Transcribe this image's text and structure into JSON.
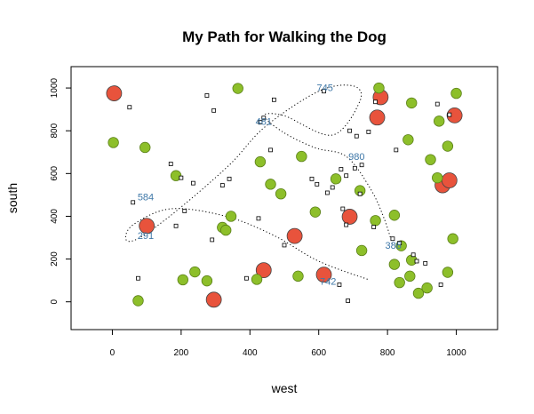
{
  "chart_data": {
    "type": "scatter",
    "title": "My Path for Walking the Dog",
    "xlabel": "west",
    "ylabel": "south",
    "xlim": [
      -120,
      1120
    ],
    "ylim": [
      -130,
      1100
    ],
    "xticks": [
      0,
      200,
      400,
      600,
      800,
      1000
    ],
    "yticks": [
      0,
      200,
      400,
      600,
      800,
      1000
    ],
    "grid": false,
    "colors": {
      "red_fill": "#e8533c",
      "green_fill": "#8dbf2a",
      "path_line": "#000000",
      "path_label": "#3f78a8"
    },
    "series": [
      {
        "marker": "large-red-circle",
        "points": [
          {
            "x": 5,
            "y": 975
          },
          {
            "x": 100,
            "y": 355
          },
          {
            "x": 295,
            "y": 10
          },
          {
            "x": 440,
            "y": 148
          },
          {
            "x": 530,
            "y": 308
          },
          {
            "x": 615,
            "y": 127
          },
          {
            "x": 690,
            "y": 398
          },
          {
            "x": 770,
            "y": 862
          },
          {
            "x": 780,
            "y": 957
          },
          {
            "x": 960,
            "y": 545
          },
          {
            "x": 980,
            "y": 568
          },
          {
            "x": 995,
            "y": 872
          }
        ]
      },
      {
        "marker": "green-circle",
        "points": [
          {
            "x": 3,
            "y": 745
          },
          {
            "x": 75,
            "y": 5
          },
          {
            "x": 95,
            "y": 722
          },
          {
            "x": 185,
            "y": 590
          },
          {
            "x": 205,
            "y": 103
          },
          {
            "x": 240,
            "y": 140
          },
          {
            "x": 275,
            "y": 98
          },
          {
            "x": 320,
            "y": 348
          },
          {
            "x": 330,
            "y": 335
          },
          {
            "x": 345,
            "y": 400
          },
          {
            "x": 365,
            "y": 998
          },
          {
            "x": 420,
            "y": 105
          },
          {
            "x": 430,
            "y": 655
          },
          {
            "x": 460,
            "y": 550
          },
          {
            "x": 490,
            "y": 505
          },
          {
            "x": 540,
            "y": 120
          },
          {
            "x": 550,
            "y": 680
          },
          {
            "x": 590,
            "y": 420
          },
          {
            "x": 650,
            "y": 575
          },
          {
            "x": 720,
            "y": 520
          },
          {
            "x": 725,
            "y": 240
          },
          {
            "x": 765,
            "y": 380
          },
          {
            "x": 775,
            "y": 1000
          },
          {
            "x": 820,
            "y": 405
          },
          {
            "x": 820,
            "y": 175
          },
          {
            "x": 835,
            "y": 90
          },
          {
            "x": 840,
            "y": 262
          },
          {
            "x": 860,
            "y": 758
          },
          {
            "x": 865,
            "y": 120
          },
          {
            "x": 870,
            "y": 195
          },
          {
            "x": 870,
            "y": 930
          },
          {
            "x": 890,
            "y": 40
          },
          {
            "x": 915,
            "y": 65
          },
          {
            "x": 925,
            "y": 665
          },
          {
            "x": 945,
            "y": 580
          },
          {
            "x": 950,
            "y": 845
          },
          {
            "x": 975,
            "y": 138
          },
          {
            "x": 975,
            "y": 728
          },
          {
            "x": 990,
            "y": 295
          },
          {
            "x": 1000,
            "y": 975
          }
        ]
      },
      {
        "marker": "small-square",
        "points": [
          {
            "x": 50,
            "y": 910
          },
          {
            "x": 60,
            "y": 465
          },
          {
            "x": 75,
            "y": 110
          },
          {
            "x": 170,
            "y": 645
          },
          {
            "x": 185,
            "y": 355
          },
          {
            "x": 200,
            "y": 580
          },
          {
            "x": 210,
            "y": 425
          },
          {
            "x": 235,
            "y": 555
          },
          {
            "x": 275,
            "y": 965
          },
          {
            "x": 290,
            "y": 290
          },
          {
            "x": 295,
            "y": 895
          },
          {
            "x": 320,
            "y": 545
          },
          {
            "x": 340,
            "y": 575
          },
          {
            "x": 390,
            "y": 110
          },
          {
            "x": 425,
            "y": 390
          },
          {
            "x": 430,
            "y": 840
          },
          {
            "x": 440,
            "y": 860
          },
          {
            "x": 460,
            "y": 710
          },
          {
            "x": 470,
            "y": 945
          },
          {
            "x": 500,
            "y": 265
          },
          {
            "x": 580,
            "y": 575
          },
          {
            "x": 595,
            "y": 550
          },
          {
            "x": 615,
            "y": 985
          },
          {
            "x": 625,
            "y": 510
          },
          {
            "x": 640,
            "y": 535
          },
          {
            "x": 660,
            "y": 80
          },
          {
            "x": 665,
            "y": 620
          },
          {
            "x": 670,
            "y": 435
          },
          {
            "x": 680,
            "y": 360
          },
          {
            "x": 680,
            "y": 590
          },
          {
            "x": 685,
            "y": 5
          },
          {
            "x": 690,
            "y": 800
          },
          {
            "x": 705,
            "y": 625
          },
          {
            "x": 710,
            "y": 775
          },
          {
            "x": 720,
            "y": 505
          },
          {
            "x": 725,
            "y": 640
          },
          {
            "x": 745,
            "y": 795
          },
          {
            "x": 760,
            "y": 350
          },
          {
            "x": 765,
            "y": 935
          },
          {
            "x": 815,
            "y": 295
          },
          {
            "x": 825,
            "y": 710
          },
          {
            "x": 835,
            "y": 275
          },
          {
            "x": 875,
            "y": 220
          },
          {
            "x": 885,
            "y": 190
          },
          {
            "x": 910,
            "y": 180
          },
          {
            "x": 945,
            "y": 925
          },
          {
            "x": 955,
            "y": 80
          },
          {
            "x": 980,
            "y": 875
          }
        ]
      }
    ],
    "path": {
      "points": [
        {
          "x": 742,
          "y": 105
        },
        {
          "x": 600,
          "y": 190
        },
        {
          "x": 470,
          "y": 310
        },
        {
          "x": 330,
          "y": 400
        },
        {
          "x": 170,
          "y": 435
        },
        {
          "x": 60,
          "y": 360
        },
        {
          "x": 40,
          "y": 290
        },
        {
          "x": 80,
          "y": 300
        },
        {
          "x": 190,
          "y": 430
        },
        {
          "x": 340,
          "y": 640
        },
        {
          "x": 445,
          "y": 820
        },
        {
          "x": 600,
          "y": 985
        },
        {
          "x": 700,
          "y": 1010
        },
        {
          "x": 720,
          "y": 940
        },
        {
          "x": 640,
          "y": 780
        },
        {
          "x": 500,
          "y": 870
        },
        {
          "x": 440,
          "y": 870
        },
        {
          "x": 500,
          "y": 790
        },
        {
          "x": 590,
          "y": 720
        },
        {
          "x": 680,
          "y": 680
        },
        {
          "x": 750,
          "y": 530
        },
        {
          "x": 790,
          "y": 390
        },
        {
          "x": 815,
          "y": 265
        }
      ],
      "labels": [
        {
          "text": "742",
          "x": 627,
          "y": 97
        },
        {
          "text": "291",
          "x": 97,
          "y": 310
        },
        {
          "text": "584",
          "x": 97,
          "y": 492
        },
        {
          "text": "481",
          "x": 440,
          "y": 845
        },
        {
          "text": "745",
          "x": 618,
          "y": 1002
        },
        {
          "text": "980",
          "x": 710,
          "y": 680
        },
        {
          "text": "386",
          "x": 817,
          "y": 265
        }
      ]
    }
  }
}
